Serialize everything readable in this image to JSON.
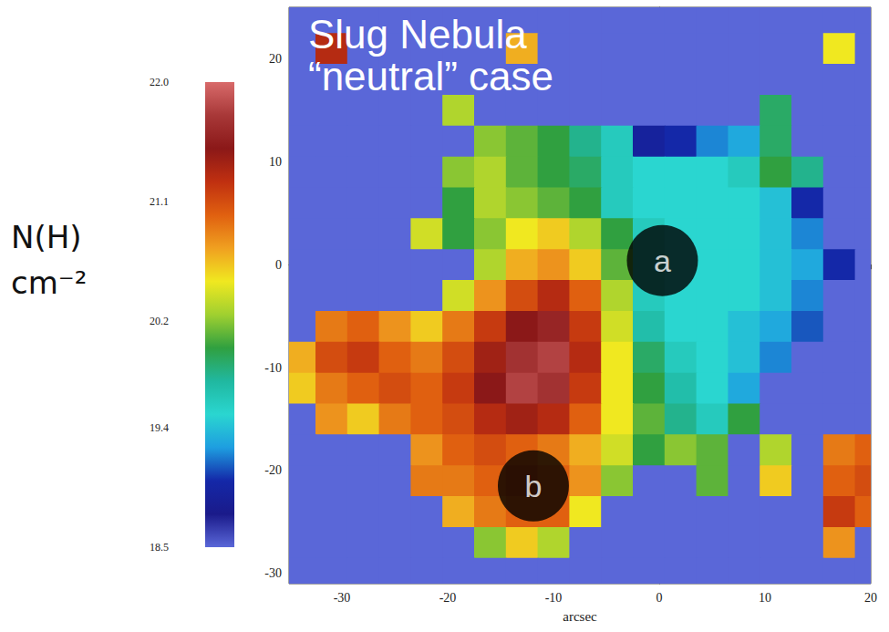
{
  "chart_data": {
    "type": "heatmap",
    "title": "Slug Nebula",
    "subtitle": "“neutral” case",
    "x_label": "arcsec",
    "xlim": [
      -35,
      20
    ],
    "xticks": [
      -30,
      -20,
      -10,
      0,
      10,
      20
    ],
    "ylim": [
      -31,
      25
    ],
    "yticks": [
      -30,
      -20,
      -10,
      0,
      10,
      20
    ],
    "grid": false,
    "cells": {
      "x": [
        -34,
        -31,
        -28,
        -25,
        -22,
        -19,
        -16,
        -13,
        -10,
        -7,
        -4,
        -1,
        2,
        5,
        8,
        11,
        14,
        17,
        20
      ],
      "y": [
        24,
        21,
        18,
        15,
        12,
        9,
        6,
        3,
        0,
        -3,
        -6,
        -9,
        -12,
        -15,
        -18,
        -21,
        -24,
        -27,
        -30
      ],
      "values": [
        [
          18.5,
          18.5,
          18.5,
          18.5,
          18.5,
          18.5,
          18.5,
          18.5,
          18.5,
          18.5,
          18.5,
          18.5,
          18.5,
          18.5,
          18.5,
          18.5,
          18.5,
          18.5,
          18.5
        ],
        [
          18.5,
          21.3,
          18.5,
          18.5,
          18.5,
          18.5,
          18.5,
          20.7,
          18.5,
          18.5,
          18.5,
          18.5,
          18.5,
          18.5,
          18.5,
          18.5,
          18.5,
          20.5,
          18.5
        ],
        [
          18.5,
          18.5,
          18.5,
          18.5,
          18.5,
          18.5,
          18.5,
          18.5,
          18.5,
          18.5,
          18.5,
          18.5,
          18.5,
          18.5,
          18.5,
          18.5,
          18.5,
          18.5,
          18.5
        ],
        [
          18.5,
          18.5,
          18.5,
          18.5,
          18.5,
          20.3,
          18.5,
          18.5,
          18.5,
          18.5,
          18.5,
          18.5,
          18.5,
          18.5,
          18.5,
          19.9,
          18.5,
          18.5,
          18.5
        ],
        [
          18.5,
          18.5,
          18.5,
          18.5,
          18.5,
          18.5,
          20.2,
          20.1,
          20.0,
          19.8,
          19.6,
          18.9,
          19.0,
          19.2,
          19.3,
          19.9,
          18.5,
          18.5,
          18.5
        ],
        [
          18.5,
          18.5,
          18.5,
          18.5,
          18.5,
          20.2,
          20.3,
          20.1,
          20.0,
          19.9,
          19.6,
          19.5,
          19.5,
          19.5,
          19.6,
          20.0,
          19.8,
          18.5,
          18.5
        ],
        [
          18.5,
          18.5,
          18.5,
          18.5,
          18.5,
          20.0,
          20.3,
          20.2,
          20.1,
          20.0,
          19.6,
          19.5,
          19.5,
          19.5,
          19.5,
          19.4,
          19.0,
          18.5,
          18.5
        ],
        [
          18.5,
          18.5,
          18.5,
          18.5,
          20.4,
          20.0,
          20.2,
          20.5,
          20.6,
          20.3,
          20.0,
          19.6,
          19.5,
          19.5,
          19.5,
          19.4,
          19.2,
          18.5,
          18.5
        ],
        [
          18.5,
          18.5,
          18.5,
          18.5,
          18.5,
          18.5,
          20.3,
          20.7,
          20.8,
          20.6,
          20.1,
          19.6,
          19.5,
          19.5,
          19.5,
          19.4,
          19.3,
          19.0,
          18.5
        ],
        [
          18.5,
          18.5,
          18.5,
          18.5,
          18.5,
          20.4,
          20.8,
          21.1,
          21.3,
          21.0,
          20.3,
          19.6,
          19.5,
          19.5,
          19.5,
          19.4,
          19.2,
          18.5,
          18.5
        ],
        [
          18.5,
          20.9,
          21.0,
          20.8,
          20.6,
          20.9,
          21.2,
          21.5,
          21.6,
          21.2,
          20.4,
          19.7,
          19.5,
          19.5,
          19.4,
          19.3,
          19.1,
          18.5,
          18.5
        ],
        [
          20.7,
          21.1,
          21.2,
          21.0,
          20.9,
          21.1,
          21.4,
          21.7,
          21.8,
          21.3,
          20.5,
          19.9,
          19.6,
          19.5,
          19.4,
          19.2,
          18.5,
          18.5,
          18.5
        ],
        [
          20.6,
          20.9,
          21.0,
          21.1,
          21.0,
          21.2,
          21.5,
          21.8,
          21.7,
          21.2,
          20.5,
          20.0,
          19.7,
          19.5,
          19.3,
          18.5,
          18.5,
          18.5,
          18.5
        ],
        [
          18.5,
          20.8,
          20.6,
          20.9,
          21.0,
          21.1,
          21.3,
          21.4,
          21.3,
          21.0,
          20.5,
          20.1,
          19.8,
          19.6,
          20.0,
          18.5,
          18.5,
          18.5,
          18.5
        ],
        [
          18.5,
          18.5,
          18.5,
          18.5,
          20.8,
          21.0,
          21.1,
          21.0,
          20.9,
          20.7,
          20.4,
          20.0,
          20.2,
          20.1,
          18.5,
          20.3,
          18.5,
          20.9,
          21.0
        ],
        [
          18.5,
          18.5,
          18.5,
          18.5,
          20.9,
          20.9,
          21.0,
          21.1,
          21.0,
          20.8,
          20.2,
          18.5,
          18.5,
          20.1,
          18.5,
          20.6,
          18.5,
          21.0,
          21.1
        ],
        [
          18.5,
          18.5,
          18.5,
          18.5,
          18.5,
          20.7,
          20.9,
          21.0,
          21.0,
          20.5,
          18.5,
          18.5,
          18.5,
          18.5,
          18.5,
          18.5,
          18.5,
          21.2,
          21.0
        ],
        [
          18.5,
          18.5,
          18.5,
          18.5,
          18.5,
          18.5,
          20.2,
          20.6,
          20.3,
          18.5,
          18.5,
          18.5,
          18.5,
          18.5,
          18.5,
          18.5,
          18.5,
          20.8,
          18.5
        ],
        [
          18.5,
          18.5,
          18.5,
          18.5,
          18.5,
          18.5,
          18.5,
          18.5,
          18.5,
          18.5,
          18.5,
          18.5,
          18.5,
          18.5,
          18.5,
          18.5,
          18.5,
          18.5,
          18.5
        ]
      ]
    },
    "colorbar": {
      "label": "N(H)\ncm⁻²",
      "range": [
        18.5,
        22
      ],
      "ticks": [
        18.5,
        19.4,
        20.2,
        21.1,
        {
          "value": 22,
          "label": "22.0"
        }
      ]
    },
    "annotations": [
      {
        "text": "a",
        "x": 0.3,
        "y": 0.4
      },
      {
        "text": "b",
        "x": -11.9,
        "y": -21.5
      }
    ]
  }
}
